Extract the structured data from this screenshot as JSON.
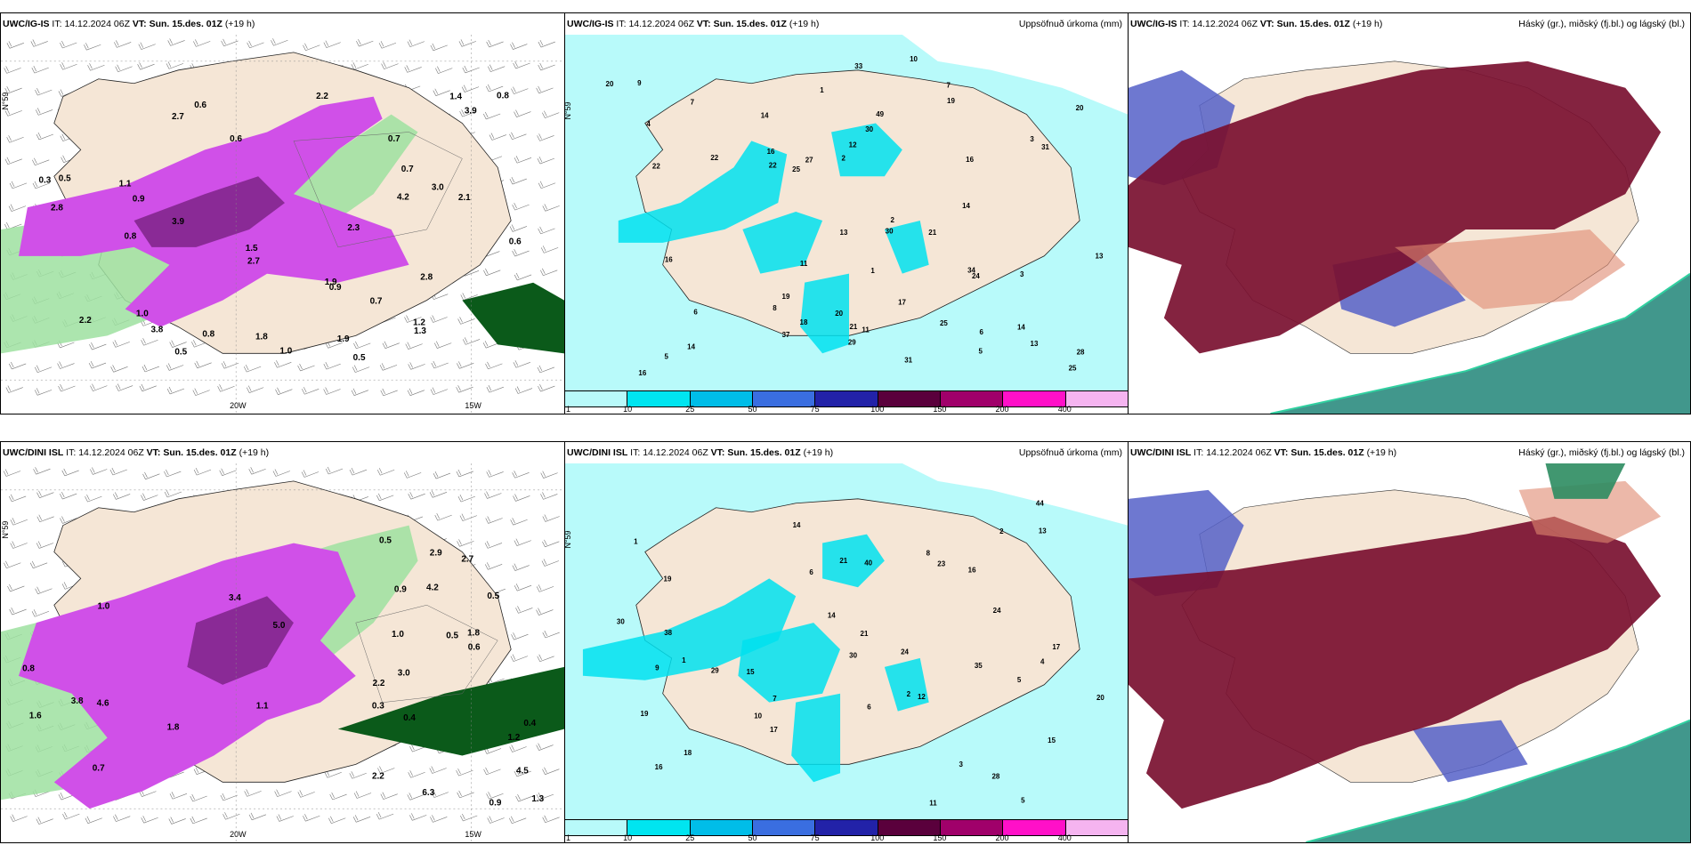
{
  "rows": [
    {
      "model": "UWC/IG-IS",
      "it_label": "IT:",
      "it_value": "14.12.2024 06Z",
      "vt_label": "VT:",
      "vt_value": "Sun. 15.des. 01Z",
      "lead": "(+19 h)",
      "lon_ticks": [
        "20W",
        "15W"
      ],
      "lat_tick": "N°59"
    },
    {
      "model": "UWC/DINI ISL",
      "it_label": "IT:",
      "it_value": "14.12.2024 06Z",
      "vt_label": "VT:",
      "vt_value": "Sun. 15.des. 01Z",
      "lead": "(+19 h)",
      "lon_ticks": [
        "20W",
        "15W"
      ],
      "lat_tick": "N°59"
    }
  ],
  "precip_title": "Uppsöfnuð úrkoma (mm)",
  "cloud_title": "Háský (gr.), miðský (fj.bl.) og lágský (bl.)",
  "legend": {
    "labels": [
      "1",
      "10",
      "25",
      "50",
      "75",
      "100",
      "150",
      "200",
      "400"
    ],
    "colors": [
      "#b8fafa",
      "#00e5f0",
      "#00bde8",
      "#3a6ee0",
      "#2222a8",
      "#5a003c",
      "#a0006a",
      "#ff10c8",
      "#f5b4f0"
    ]
  },
  "colors": {
    "land": "#f5e6d6",
    "sea_precip": "#b8fafa",
    "precip_cyan": "#00e0ee",
    "magenta": "#d050e8",
    "dark_magenta": "#8a2a96",
    "green": "#50c060",
    "dark_green": "#0b5a1a",
    "maroon": "#7a1030",
    "blue": "#5560c8",
    "teal": "#2c8c80"
  },
  "panel1_values": [
    "0.5",
    "2.7",
    "1.0",
    "1.1",
    "3.0",
    "1.9",
    "0.6",
    "3.9",
    "2.7",
    "3.8",
    "2.2",
    "0.3",
    "1.5",
    "1.9",
    "4.2",
    "1.4",
    "2.8",
    "3.9",
    "2.8",
    "2.1",
    "1.2",
    "0.9",
    "0.5",
    "1.3",
    "2.3",
    "0.7",
    "0.8",
    "0.9",
    "1.0",
    "0.6",
    "0.7",
    "0.8",
    "0.7",
    "0.8",
    "0.6",
    "1.8",
    "2.2",
    "0.5"
  ],
  "panel4_values": [
    "0.3",
    "0.4",
    "0.5",
    "1.2",
    "2.2",
    "4.2",
    "1.8",
    "5.0",
    "4.5",
    "6.3",
    "3.0",
    "2.2",
    "1.6",
    "0.4",
    "1.8",
    "0.9",
    "2.7",
    "3.8",
    "2.9",
    "3.4",
    "1.1",
    "0.8",
    "1.0",
    "0.5",
    "0.6",
    "0.7",
    "1.0",
    "0.9",
    "1.3",
    "4.6",
    "0.5"
  ],
  "panel2_values": [
    "5",
    "3",
    "2",
    "1",
    "1",
    "10",
    "14",
    "7",
    "6",
    "8",
    "25",
    "22",
    "18",
    "33",
    "25",
    "16",
    "34",
    "16",
    "13",
    "20",
    "20",
    "14",
    "29",
    "21",
    "24",
    "19",
    "27",
    "30",
    "31",
    "17",
    "13",
    "11",
    "49",
    "16",
    "30",
    "31",
    "21",
    "16",
    "22",
    "20",
    "22",
    "19",
    "14",
    "37",
    "14",
    "25",
    "12",
    "11",
    "13",
    "28",
    "4",
    "2",
    "9",
    "5",
    "6",
    "7",
    "3"
  ],
  "panel5_values": [
    "5",
    "1",
    "2",
    "1",
    "15",
    "19",
    "18",
    "15",
    "16",
    "21",
    "23",
    "28",
    "17",
    "14",
    "24",
    "19",
    "35",
    "21",
    "30",
    "16",
    "44",
    "40",
    "24",
    "20",
    "17",
    "38",
    "29",
    "30",
    "14",
    "13",
    "12",
    "9",
    "10",
    "8",
    "6",
    "5",
    "4",
    "3",
    "2",
    "11",
    "7",
    "6"
  ]
}
